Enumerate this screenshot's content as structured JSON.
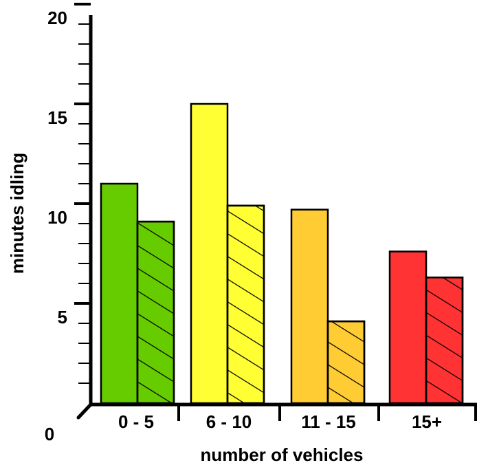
{
  "chart_data": {
    "type": "bar",
    "title": "",
    "xlabel": "number of vehicles",
    "ylabel": "minutes idling",
    "categories": [
      "0 - 5",
      "6 - 10",
      "11 - 15",
      "15+"
    ],
    "ylim": [
      0,
      20
    ],
    "yticks": [
      "5",
      "10",
      "15",
      "20"
    ],
    "origin_label": "0",
    "grid": false,
    "legend": "none",
    "series": [
      {
        "pattern": "solid",
        "values": [
          11,
          15,
          9.7,
          7.6
        ]
      },
      {
        "pattern": "hatched",
        "values": [
          9.1,
          9.9,
          4.1,
          6.3
        ]
      }
    ],
    "colors": [
      "#66cc00",
      "#ffff33",
      "#ffcc33",
      "#ff3333"
    ]
  }
}
